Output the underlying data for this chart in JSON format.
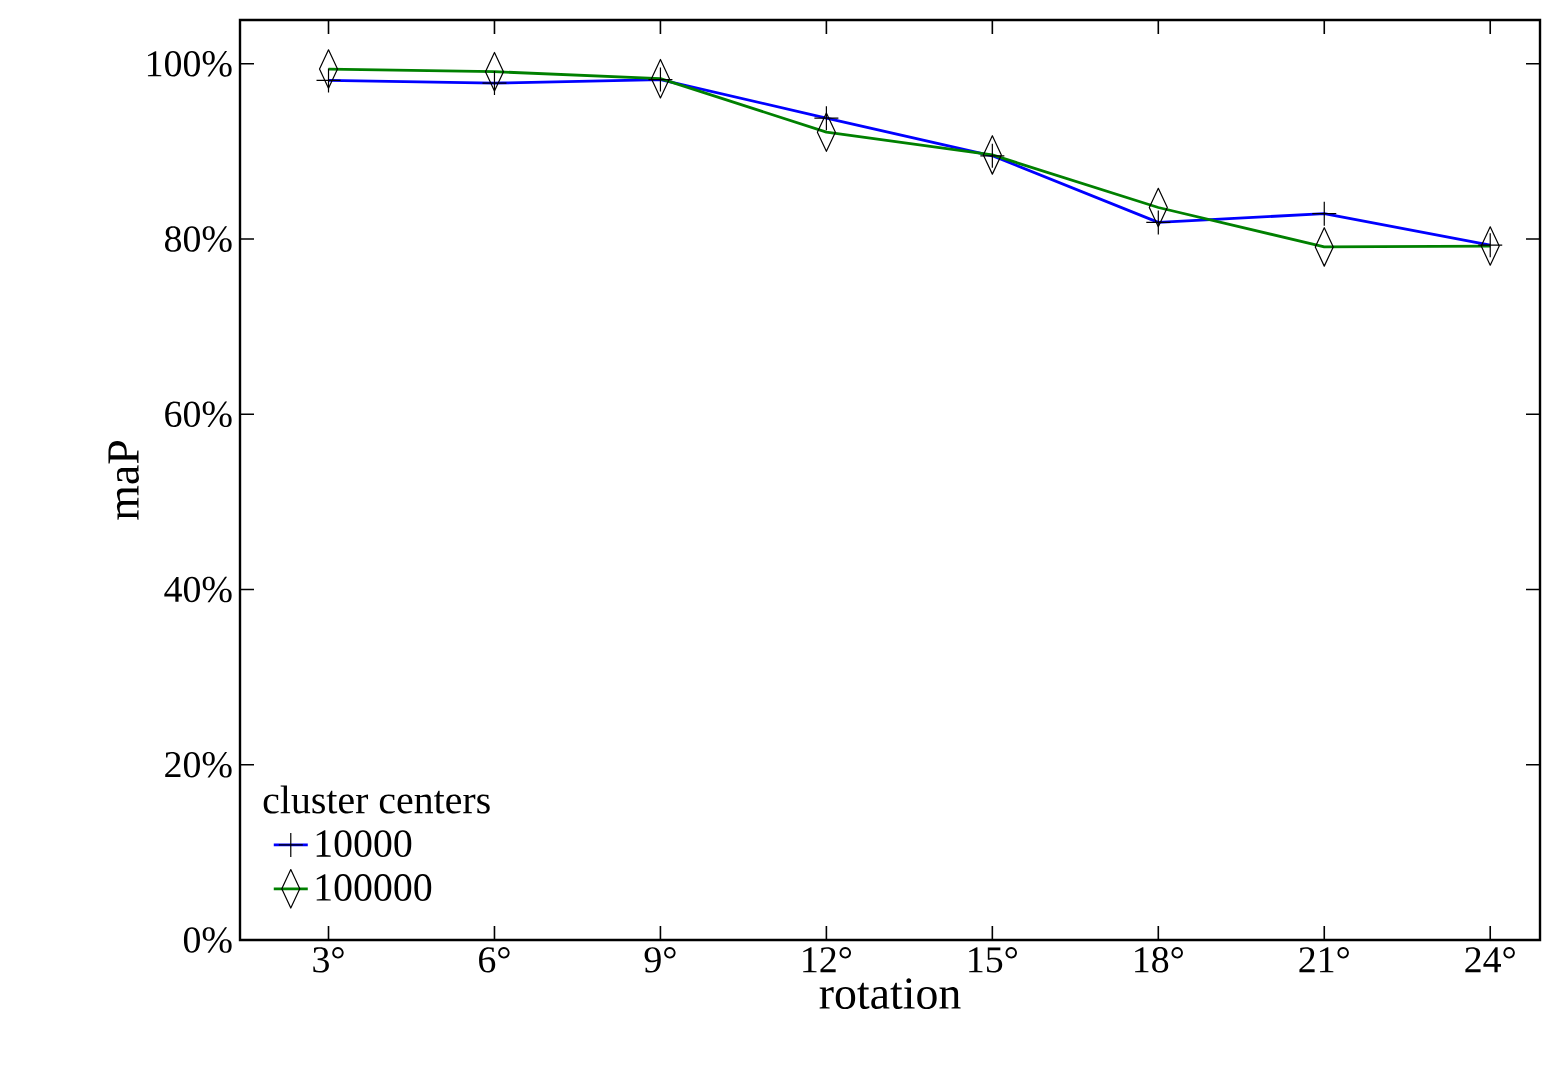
{
  "chart_data": {
    "type": "line",
    "xlabel": "rotation",
    "ylabel": "maP",
    "legend_title": "cluster centers",
    "legend": "bottom left",
    "grid": false,
    "x": [
      3,
      6,
      9,
      12,
      15,
      18,
      21,
      24
    ],
    "xlim": [
      1.4,
      24.9
    ],
    "xticks": [
      {
        "value": 3,
        "label": "3°"
      },
      {
        "value": 6,
        "label": "6°"
      },
      {
        "value": 9,
        "label": "9°"
      },
      {
        "value": 12,
        "label": "12°"
      },
      {
        "value": 15,
        "label": "15°"
      },
      {
        "value": 18,
        "label": "18°"
      },
      {
        "value": 21,
        "label": "21°"
      },
      {
        "value": 24,
        "label": "24°"
      }
    ],
    "ylim": [
      0,
      105
    ],
    "yticks": [
      {
        "value": 0,
        "label": "0%"
      },
      {
        "value": 20,
        "label": "20%"
      },
      {
        "value": 40,
        "label": "40%"
      },
      {
        "value": 60,
        "label": "60%"
      },
      {
        "value": 80,
        "label": "80%"
      },
      {
        "value": 100,
        "label": "100%"
      }
    ],
    "series": [
      {
        "name": "10000",
        "color": "#0000ff",
        "marker": "cross",
        "values": [
          98.1,
          97.8,
          98.2,
          93.8,
          89.5,
          81.9,
          82.9,
          79.3
        ]
      },
      {
        "name": "100000",
        "color": "#008000",
        "marker": "diamond",
        "values": [
          99.4,
          99.1,
          98.3,
          92.2,
          89.6,
          83.6,
          79.1,
          79.2
        ]
      }
    ]
  }
}
